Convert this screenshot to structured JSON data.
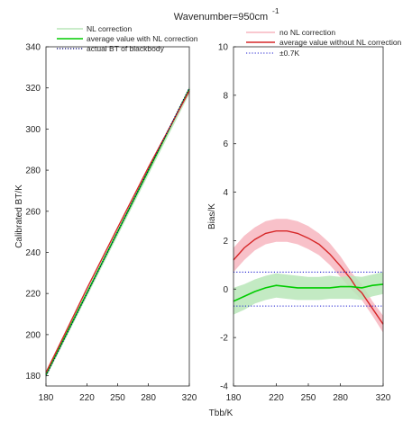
{
  "chart_data": [
    {
      "type": "line",
      "title_main": "Wavenumber=950cm",
      "title_sup": "-1",
      "ylabel": "Calibrated BT/K",
      "xlim": [
        180,
        320
      ],
      "ylim": [
        175,
        340
      ],
      "xticks": [
        180,
        220,
        250,
        280,
        320
      ],
      "yticks": [
        180,
        200,
        220,
        240,
        260,
        280,
        300,
        320,
        340
      ],
      "grid": false,
      "legend_position": "top-left",
      "series": [
        {
          "name": "NL correction",
          "color": "#b8e6b8",
          "style": "band",
          "x": [
            180,
            320
          ],
          "y": [
            180.5,
            318.5
          ],
          "spread": 1.5
        },
        {
          "name": "average value with NL correction",
          "color": "#00cc00",
          "style": "solid",
          "x": [
            180,
            320
          ],
          "y": [
            180.5,
            319.5
          ]
        },
        {
          "name": "actual BT of blackbody",
          "color": "#00006e",
          "style": "dotted",
          "x": [
            180,
            320
          ],
          "y": [
            180,
            320
          ]
        },
        {
          "name": "",
          "color": "#d62728",
          "style": "solid",
          "x": [
            180,
            220,
            250,
            280,
            300,
            320
          ],
          "y": [
            181.5,
            222.4,
            252.0,
            281.3,
            300.0,
            318.6
          ]
        }
      ]
    },
    {
      "type": "line",
      "ylabel": "Bias/K",
      "xlabel": "Tbb/K",
      "xlim": [
        180,
        320
      ],
      "ylim": [
        -4,
        10
      ],
      "xticks": [
        180,
        220,
        250,
        280,
        320
      ],
      "yticks": [
        -4,
        -2,
        0,
        2,
        4,
        6,
        8,
        10
      ],
      "ytick_labels": [
        "-4",
        "-2",
        "0",
        "2",
        "4",
        "6",
        "8",
        "10"
      ],
      "grid": false,
      "legend_position": "top",
      "series": [
        {
          "name": "no NL correction",
          "color": "#f7b6bf",
          "style": "band",
          "x": [
            180,
            190,
            200,
            210,
            220,
            230,
            240,
            250,
            260,
            270,
            280,
            290,
            300,
            310,
            320
          ],
          "lower": [
            0.7,
            1.2,
            1.6,
            1.85,
            1.95,
            1.95,
            1.85,
            1.65,
            1.4,
            1.0,
            0.5,
            0.0,
            -0.45,
            -1.1,
            -1.8
          ],
          "upper": [
            1.7,
            2.2,
            2.55,
            2.8,
            2.9,
            2.9,
            2.8,
            2.6,
            2.3,
            1.9,
            1.35,
            0.7,
            0.2,
            -0.5,
            -1.1
          ]
        },
        {
          "name": "average value without NL correction",
          "color": "#d62728",
          "style": "solid",
          "x": [
            180,
            190,
            200,
            210,
            220,
            230,
            240,
            250,
            260,
            270,
            280,
            290,
            295,
            300,
            310,
            320
          ],
          "y": [
            1.2,
            1.7,
            2.05,
            2.3,
            2.4,
            2.4,
            2.3,
            2.1,
            1.85,
            1.45,
            0.95,
            0.4,
            0.05,
            -0.15,
            -0.8,
            -1.45
          ]
        },
        {
          "name": "±0.7K",
          "color": "#1f1fd0",
          "style": "dotted",
          "values": [
            0.7,
            -0.7
          ]
        },
        {
          "name": "",
          "color": "#b8e6b8",
          "style": "band",
          "x": [
            180,
            190,
            200,
            210,
            220,
            230,
            240,
            250,
            260,
            270,
            280,
            290,
            300,
            310,
            320
          ],
          "lower": [
            -1.05,
            -0.85,
            -0.6,
            -0.45,
            -0.35,
            -0.4,
            -0.45,
            -0.45,
            -0.45,
            -0.4,
            -0.4,
            -0.4,
            -0.45,
            -0.3,
            -0.2
          ],
          "upper": [
            0.05,
            0.2,
            0.4,
            0.55,
            0.65,
            0.6,
            0.55,
            0.5,
            0.5,
            0.55,
            0.5,
            0.55,
            0.5,
            0.6,
            0.7
          ]
        },
        {
          "name": "",
          "color": "#00cc00",
          "style": "solid",
          "x": [
            180,
            190,
            200,
            210,
            220,
            230,
            240,
            250,
            260,
            270,
            280,
            290,
            300,
            310,
            320
          ],
          "y": [
            -0.5,
            -0.3,
            -0.1,
            0.05,
            0.15,
            0.1,
            0.05,
            0.05,
            0.05,
            0.05,
            0.1,
            0.1,
            0.05,
            0.15,
            0.2
          ]
        }
      ]
    }
  ]
}
